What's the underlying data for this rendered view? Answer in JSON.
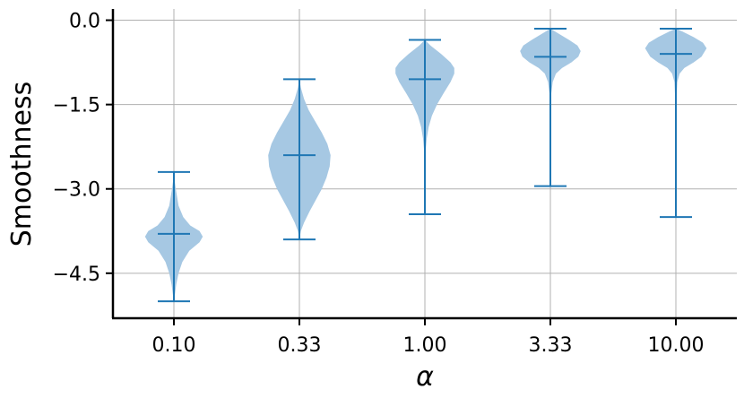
{
  "chart_data": {
    "type": "violin",
    "xlabel": "α",
    "ylabel": "Smoothness",
    "categories": [
      "0.10",
      "0.33",
      "1.00",
      "3.33",
      "10.00"
    ],
    "ylim": [
      -5.3,
      0.2
    ],
    "yticks": [
      0.0,
      -1.5,
      -3.0,
      -4.5
    ],
    "ytick_labels": [
      "0.0",
      "−1.5",
      "−3.0",
      "−4.5"
    ],
    "grid": true,
    "colors": {
      "body": "#a6c8e3",
      "lines": "#1f77b4",
      "grid": "#b0b0b0",
      "axis": "#000000"
    },
    "violins": [
      {
        "category": "0.10",
        "min": -5.0,
        "max": -2.7,
        "median": -3.8,
        "profile": [
          [
            -5.0,
            0.0
          ],
          [
            -4.9,
            0.02
          ],
          [
            -4.7,
            0.05
          ],
          [
            -4.5,
            0.1
          ],
          [
            -4.3,
            0.18
          ],
          [
            -4.1,
            0.33
          ],
          [
            -3.95,
            0.55
          ],
          [
            -3.85,
            0.62
          ],
          [
            -3.75,
            0.55
          ],
          [
            -3.65,
            0.35
          ],
          [
            -3.5,
            0.2
          ],
          [
            -3.3,
            0.1
          ],
          [
            -3.0,
            0.04
          ],
          [
            -2.8,
            0.01
          ],
          [
            -2.7,
            0.0
          ]
        ]
      },
      {
        "category": "0.33",
        "min": -3.9,
        "max": -1.05,
        "median": -2.4,
        "profile": [
          [
            -3.9,
            0.0
          ],
          [
            -3.75,
            0.03
          ],
          [
            -3.6,
            0.1
          ],
          [
            -3.4,
            0.22
          ],
          [
            -3.2,
            0.35
          ],
          [
            -3.0,
            0.48
          ],
          [
            -2.8,
            0.58
          ],
          [
            -2.6,
            0.65
          ],
          [
            -2.4,
            0.67
          ],
          [
            -2.2,
            0.6
          ],
          [
            -2.0,
            0.48
          ],
          [
            -1.8,
            0.34
          ],
          [
            -1.6,
            0.2
          ],
          [
            -1.4,
            0.1
          ],
          [
            -1.2,
            0.03
          ],
          [
            -1.05,
            0.0
          ]
        ]
      },
      {
        "category": "1.00",
        "min": -3.45,
        "max": -0.35,
        "median": -1.05,
        "profile": [
          [
            -3.45,
            0.0
          ],
          [
            -3.0,
            0.005
          ],
          [
            -2.6,
            0.01
          ],
          [
            -2.3,
            0.02
          ],
          [
            -2.1,
            0.04
          ],
          [
            -1.9,
            0.08
          ],
          [
            -1.7,
            0.15
          ],
          [
            -1.5,
            0.26
          ],
          [
            -1.3,
            0.4
          ],
          [
            -1.1,
            0.55
          ],
          [
            -0.95,
            0.63
          ],
          [
            -0.85,
            0.63
          ],
          [
            -0.75,
            0.55
          ],
          [
            -0.6,
            0.35
          ],
          [
            -0.45,
            0.12
          ],
          [
            -0.35,
            0.0
          ]
        ]
      },
      {
        "category": "3.33",
        "min": -2.95,
        "max": -0.15,
        "median": -0.65,
        "profile": [
          [
            -2.95,
            0.0
          ],
          [
            -2.0,
            0.005
          ],
          [
            -1.3,
            0.02
          ],
          [
            -1.1,
            0.05
          ],
          [
            -0.95,
            0.12
          ],
          [
            -0.85,
            0.25
          ],
          [
            -0.75,
            0.45
          ],
          [
            -0.65,
            0.6
          ],
          [
            -0.55,
            0.65
          ],
          [
            -0.45,
            0.58
          ],
          [
            -0.35,
            0.4
          ],
          [
            -0.25,
            0.2
          ],
          [
            -0.15,
            0.0
          ]
        ]
      },
      {
        "category": "10.00",
        "min": -3.5,
        "max": -0.15,
        "median": -0.6,
        "profile": [
          [
            -3.5,
            0.0
          ],
          [
            -2.5,
            0.005
          ],
          [
            -1.5,
            0.01
          ],
          [
            -1.1,
            0.03
          ],
          [
            -0.95,
            0.08
          ],
          [
            -0.85,
            0.18
          ],
          [
            -0.75,
            0.38
          ],
          [
            -0.65,
            0.55
          ],
          [
            -0.5,
            0.66
          ],
          [
            -0.4,
            0.58
          ],
          [
            -0.3,
            0.38
          ],
          [
            -0.2,
            0.14
          ],
          [
            -0.15,
            0.0
          ]
        ]
      }
    ]
  }
}
